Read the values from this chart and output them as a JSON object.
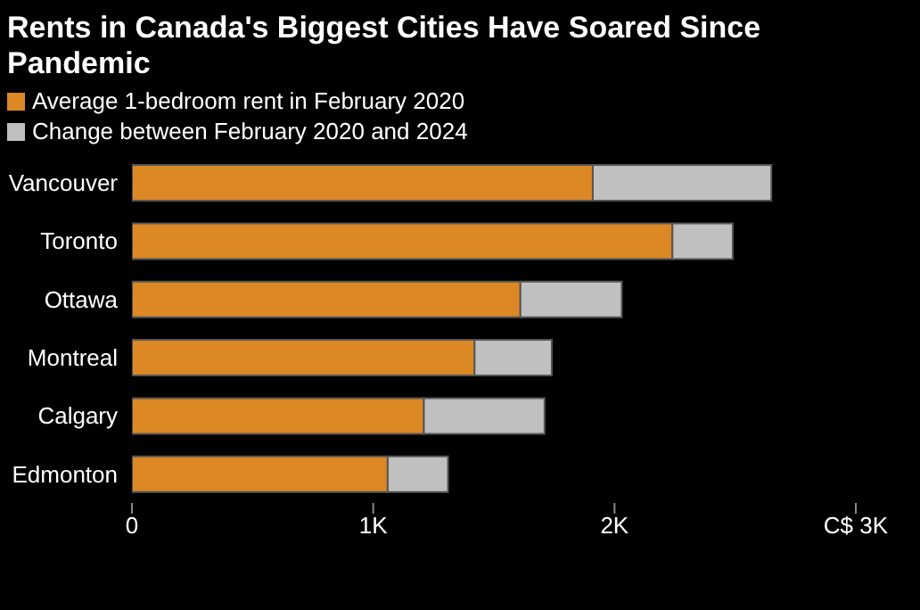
{
  "chart_data": {
    "type": "bar",
    "title": "Rents in Canada's Biggest Cities Have Soared Since Pandemic",
    "orientation": "horizontal",
    "stacked": true,
    "categories": [
      "Vancouver",
      "Toronto",
      "Ottawa",
      "Montreal",
      "Calgary",
      "Edmonton"
    ],
    "series": [
      {
        "name": "Average 1-bedroom rent in February 2020",
        "color": "#dc8824",
        "values": [
          1910,
          2240,
          1610,
          1420,
          1210,
          1060
        ]
      },
      {
        "name": "Change between February 2020 and 2024",
        "color": "#c0c0c0",
        "values": [
          740,
          250,
          420,
          320,
          500,
          250
        ]
      }
    ],
    "xlim": [
      0,
      3000
    ],
    "xticks": [
      0,
      {
        "value": 1000,
        "label": "1K"
      },
      {
        "value": 2000,
        "label": "2K"
      },
      {
        "value": 3000,
        "label": "C$ 3K"
      }
    ],
    "legend": "top left",
    "grid": false
  }
}
